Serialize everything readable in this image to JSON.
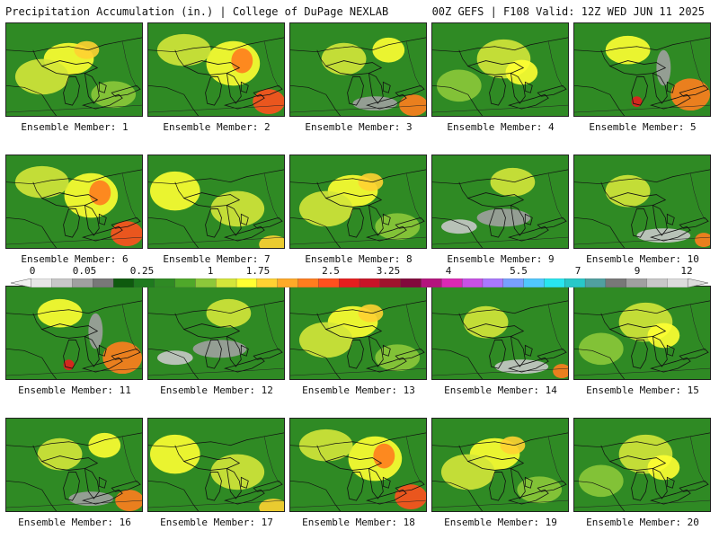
{
  "header": {
    "left_title": "Precipitation Accumulation (in.) | College of DuPage NEXLAB",
    "right_title": "00Z GEFS | F108 Valid: 12Z WED JUN 11 2025"
  },
  "colorbar": {
    "tick_labels": [
      "0",
      "0.05",
      "0.25",
      "1",
      "1.75",
      "2.5",
      "3.25",
      "4",
      "5.5",
      "7",
      "9",
      "12"
    ],
    "colors": [
      "#e6e6e6",
      "#c8c8c8",
      "#a0a0a0",
      "#787878",
      "#0e5a0e",
      "#1e7a1e",
      "#2f8a24",
      "#4fa82a",
      "#8cc83a",
      "#d4e63a",
      "#ffff32",
      "#ffd232",
      "#ffaa28",
      "#ff7d1e",
      "#ff501e",
      "#e61e1e",
      "#c81428",
      "#a0142d",
      "#820a3c",
      "#b4147d",
      "#dc28b4",
      "#c850e6",
      "#aa78ff",
      "#78a0ff",
      "#50c8ff",
      "#28e6f0",
      "#28c8c8",
      "#50a0a0",
      "#787878",
      "#a0a0a0",
      "#c8c8c8",
      "#dcdcdc"
    ]
  },
  "members": [
    {
      "label": "Ensemble Member: 1",
      "pattern": "a"
    },
    {
      "label": "Ensemble Member: 2",
      "pattern": "b"
    },
    {
      "label": "Ensemble Member: 3",
      "pattern": "c"
    },
    {
      "label": "Ensemble Member: 4",
      "pattern": "d"
    },
    {
      "label": "Ensemble Member: 5",
      "pattern": "e"
    },
    {
      "label": "Ensemble Member: 6",
      "pattern": "b"
    },
    {
      "label": "Ensemble Member: 7",
      "pattern": "f"
    },
    {
      "label": "Ensemble Member: 8",
      "pattern": "a"
    },
    {
      "label": "Ensemble Member: 9",
      "pattern": "g"
    },
    {
      "label": "Ensemble Member: 10",
      "pattern": "h"
    },
    {
      "label": "Ensemble Member: 11",
      "pattern": "e"
    },
    {
      "label": "Ensemble Member: 12",
      "pattern": "g"
    },
    {
      "label": "Ensemble Member: 13",
      "pattern": "a"
    },
    {
      "label": "Ensemble Member: 14",
      "pattern": "h"
    },
    {
      "label": "Ensemble Member: 15",
      "pattern": "d"
    },
    {
      "label": "Ensemble Member: 16",
      "pattern": "c"
    },
    {
      "label": "Ensemble Member: 17",
      "pattern": "f"
    },
    {
      "label": "Ensemble Member: 18",
      "pattern": "b"
    },
    {
      "label": "Ensemble Member: 19",
      "pattern": "a"
    },
    {
      "label": "Ensemble Member: 20",
      "pattern": "d"
    }
  ]
}
